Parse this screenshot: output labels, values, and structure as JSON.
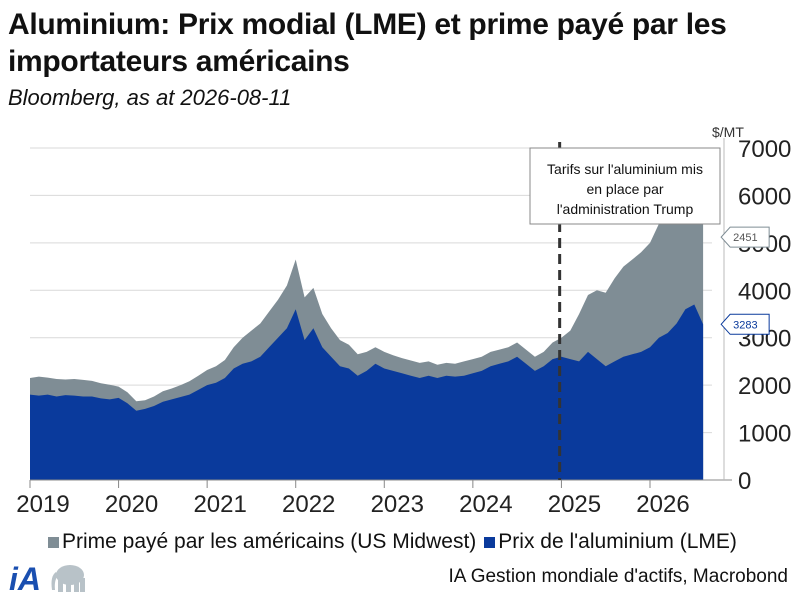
{
  "header": {
    "title": "Aluminium: Prix modial (LME) et prime payé par les importateurs américains",
    "subtitle": "Bloomberg, as at 2026-08-11"
  },
  "footer": {
    "source": "IA Gestion mondiale d'actifs, Macrobond",
    "logo_text": "iA"
  },
  "chart_data": {
    "type": "area",
    "stacked": true,
    "unit": "$/MT",
    "ylim": [
      0,
      7000
    ],
    "yticks": [
      "0",
      "1000",
      "2000",
      "3000",
      "4000",
      "5000",
      "6000",
      "7000"
    ],
    "xlim": [
      2019.0,
      2026.7
    ],
    "xticks": [
      "2019",
      "2020",
      "2021",
      "2022",
      "2023",
      "2024",
      "2025",
      "2026"
    ],
    "legend": {
      "placement": "bottom"
    },
    "grid": true,
    "colors": {
      "lme": "#0a3a9c",
      "premium": "#7f8d95",
      "premium_top": "#7f8d95"
    },
    "series": [
      {
        "name": "Prix de l'aluminium (LME)",
        "key": "lme",
        "x": [
          2019.0,
          2019.1,
          2019.2,
          2019.3,
          2019.4,
          2019.5,
          2019.6,
          2019.7,
          2019.8,
          2019.9,
          2020.0,
          2020.1,
          2020.2,
          2020.3,
          2020.4,
          2020.5,
          2020.6,
          2020.7,
          2020.8,
          2020.9,
          2021.0,
          2021.1,
          2021.2,
          2021.3,
          2021.4,
          2021.5,
          2021.6,
          2021.7,
          2021.8,
          2021.9,
          2022.0,
          2022.1,
          2022.2,
          2022.3,
          2022.4,
          2022.5,
          2022.6,
          2022.7,
          2022.8,
          2022.9,
          2023.0,
          2023.1,
          2023.2,
          2023.3,
          2023.4,
          2023.5,
          2023.6,
          2023.7,
          2023.8,
          2023.9,
          2024.0,
          2024.1,
          2024.2,
          2024.3,
          2024.4,
          2024.5,
          2024.6,
          2024.7,
          2024.8,
          2024.9,
          2025.0,
          2025.1,
          2025.2,
          2025.3,
          2025.4,
          2025.5,
          2025.6,
          2025.7,
          2025.8,
          2025.9,
          2026.0,
          2026.1,
          2026.2,
          2026.3,
          2026.4,
          2026.5,
          2026.6
        ],
        "values": [
          1800,
          1780,
          1800,
          1760,
          1790,
          1780,
          1760,
          1760,
          1720,
          1700,
          1730,
          1620,
          1460,
          1500,
          1560,
          1650,
          1700,
          1750,
          1800,
          1900,
          2000,
          2050,
          2150,
          2350,
          2450,
          2500,
          2600,
          2800,
          3000,
          3200,
          3600,
          2950,
          3200,
          2800,
          2600,
          2400,
          2350,
          2200,
          2300,
          2450,
          2350,
          2300,
          2250,
          2200,
          2150,
          2200,
          2150,
          2200,
          2180,
          2200,
          2250,
          2300,
          2400,
          2450,
          2500,
          2600,
          2450,
          2300,
          2400,
          2550,
          2600,
          2550,
          2500,
          2700,
          2550,
          2400,
          2500,
          2600,
          2650,
          2700,
          2800,
          3000,
          3100,
          3300,
          3600,
          3700,
          3283
        ]
      },
      {
        "name": "Prime payé par les américains (US Midwest)",
        "key": "premium",
        "x": [
          2019.0,
          2019.1,
          2019.2,
          2019.3,
          2019.4,
          2019.5,
          2019.6,
          2019.7,
          2019.8,
          2019.9,
          2020.0,
          2020.1,
          2020.2,
          2020.3,
          2020.4,
          2020.5,
          2020.6,
          2020.7,
          2020.8,
          2020.9,
          2021.0,
          2021.1,
          2021.2,
          2021.3,
          2021.4,
          2021.5,
          2021.6,
          2021.7,
          2021.8,
          2021.9,
          2022.0,
          2022.1,
          2022.2,
          2022.3,
          2022.4,
          2022.5,
          2022.6,
          2022.7,
          2022.8,
          2022.9,
          2023.0,
          2023.1,
          2023.2,
          2023.3,
          2023.4,
          2023.5,
          2023.6,
          2023.7,
          2023.8,
          2023.9,
          2024.0,
          2024.1,
          2024.2,
          2024.3,
          2024.4,
          2024.5,
          2024.6,
          2024.7,
          2024.8,
          2024.9,
          2025.0,
          2025.1,
          2025.2,
          2025.3,
          2025.4,
          2025.5,
          2025.6,
          2025.7,
          2025.8,
          2025.9,
          2026.0,
          2026.1,
          2026.2,
          2026.3,
          2026.4,
          2026.5,
          2026.6
        ],
        "values": [
          350,
          400,
          360,
          370,
          330,
          350,
          350,
          330,
          320,
          310,
          240,
          230,
          200,
          180,
          200,
          220,
          230,
          250,
          280,
          300,
          320,
          350,
          380,
          450,
          550,
          650,
          700,
          750,
          800,
          900,
          1050,
          900,
          850,
          700,
          600,
          550,
          500,
          450,
          400,
          350,
          350,
          330,
          320,
          320,
          320,
          300,
          280,
          270,
          270,
          300,
          300,
          300,
          300,
          300,
          300,
          300,
          300,
          300,
          300,
          350,
          400,
          600,
          1000,
          1200,
          1450,
          1550,
          1750,
          1900,
          2000,
          2100,
          2200,
          2400,
          2500,
          2700,
          2500,
          1800,
          2451
        ]
      }
    ],
    "last_value_labels": {
      "lme": "3283",
      "premium": "2451"
    },
    "annotations": [
      {
        "type": "vline",
        "x": 2024.98,
        "style": "dashed",
        "text": "Tarifs sur l'aluminium mis en place par l'administration Trump"
      }
    ]
  }
}
